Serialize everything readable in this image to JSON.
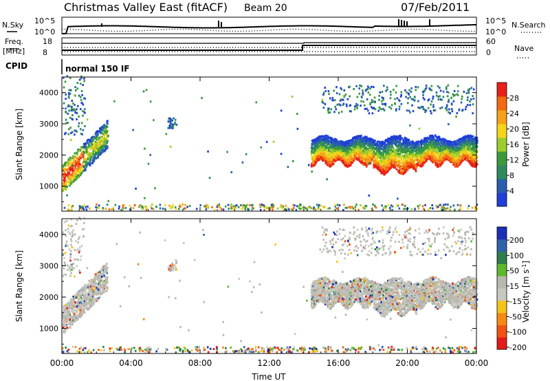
{
  "header": {
    "title": "Christmas Valley East (fitACF)",
    "beam_label": "Beam 20",
    "date": "07/Feb/2011"
  },
  "status_panels": {
    "nsky_label": "N.Sky",
    "nsearch_label": "N.Search",
    "nsky_ticks": [
      "10^5",
      "10^0"
    ],
    "nsearch_ticks": [
      "10^5",
      "10^0"
    ],
    "freq_label": "Freq.",
    "freq_unit": "[MHz]",
    "freq_ticks": [
      "18",
      "8"
    ],
    "nave_label": "Nave",
    "nave_ticks": [
      "60",
      "0"
    ],
    "cpid_label": "CPID",
    "cpid_value": "normal 150 IF"
  },
  "chart_data": [
    {
      "type": "heatmap",
      "name": "power",
      "ylabel": "Slant Range [km]",
      "xlabel": "",
      "ylim": [
        200,
        4500
      ],
      "yticks": [
        "1000",
        "2000",
        "3000",
        "4000"
      ],
      "xlim": [
        0,
        24
      ],
      "colorbar_label": "Power [dB]",
      "colorbar_ticks": [
        "4",
        "8",
        "12",
        "16",
        "20",
        "24",
        "28"
      ],
      "colorscale": [
        "#1f3fd6",
        "#2a5fb0",
        "#2e8a5c",
        "#3c9a3c",
        "#9ccd2c",
        "#f4d51a",
        "#f4a21a",
        "#f26a12",
        "#e8201a"
      ]
    },
    {
      "type": "heatmap",
      "name": "velocity",
      "ylabel": "Slant Range [km]",
      "xlabel": "Time UT",
      "ylim": [
        200,
        4500
      ],
      "yticks": [
        "1000",
        "2000",
        "3000",
        "4000"
      ],
      "xlim": [
        0,
        24
      ],
      "xticks": [
        "00:00",
        "04:00",
        "08:00",
        "12:00",
        "16:00",
        "20:00",
        "00:00"
      ],
      "colorbar_label": "Velocity [m s",
      "colorbar_label_sup": "-1",
      "colorbar_label_end": "]",
      "colorbar_ticks": [
        "200",
        "100",
        "50",
        "15",
        "-15",
        "-50",
        "-100",
        "-200"
      ],
      "colorscale": [
        "#1c2fb8",
        "#2e63a8",
        "#2d7d4d",
        "#5cb82d",
        "#b8b8b0",
        "#c8c8c0",
        "#f4c41a",
        "#f48a14",
        "#f25212",
        "#e41a1a"
      ]
    }
  ]
}
